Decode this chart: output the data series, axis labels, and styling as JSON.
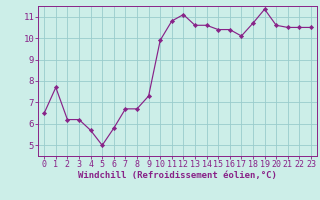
{
  "x": [
    0,
    1,
    2,
    3,
    4,
    5,
    6,
    7,
    8,
    9,
    10,
    11,
    12,
    13,
    14,
    15,
    16,
    17,
    18,
    19,
    20,
    21,
    22,
    23
  ],
  "y": [
    6.5,
    7.7,
    6.2,
    6.2,
    5.7,
    5.0,
    5.8,
    6.7,
    6.7,
    7.3,
    9.9,
    10.8,
    11.1,
    10.6,
    10.6,
    10.4,
    10.4,
    10.1,
    10.7,
    11.35,
    10.6,
    10.5,
    10.5,
    10.5
  ],
  "line_color": "#882288",
  "marker_color": "#882288",
  "bg_color": "#cceee8",
  "grid_color": "#99cccc",
  "xlabel": "Windchill (Refroidissement éolien,°C)",
  "xlim": [
    -0.5,
    23.5
  ],
  "ylim": [
    4.5,
    11.5
  ],
  "yticks": [
    5,
    6,
    7,
    8,
    9,
    10,
    11
  ],
  "xticks": [
    0,
    1,
    2,
    3,
    4,
    5,
    6,
    7,
    8,
    9,
    10,
    11,
    12,
    13,
    14,
    15,
    16,
    17,
    18,
    19,
    20,
    21,
    22,
    23
  ],
  "tick_color": "#882288",
  "label_color": "#882288",
  "xlabel_fontsize": 6.5,
  "tick_fontsize": 6.0
}
